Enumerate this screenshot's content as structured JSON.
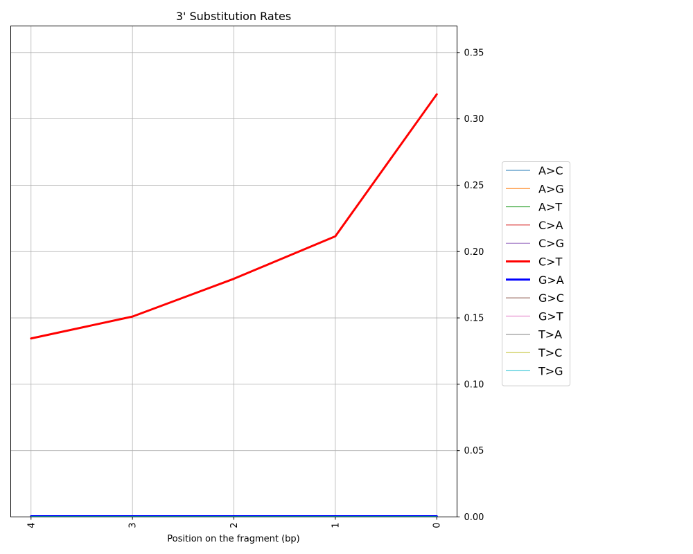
{
  "chart_data": {
    "type": "line",
    "title": "3' Substitution Rates",
    "xlabel": "Position on the fragment (bp)",
    "ylabel": "",
    "x": [
      4,
      3,
      2,
      1,
      0
    ],
    "x_tick_labels": [
      "4",
      "3",
      "2",
      "1",
      "0"
    ],
    "xlim": [
      4.2,
      -0.2
    ],
    "ylim": [
      0,
      0.37
    ],
    "y_ticks": [
      0,
      0.05,
      0.1,
      0.15,
      0.2,
      0.25,
      0.3,
      0.35
    ],
    "y_tick_labels": [
      "0.00",
      "0.05",
      "0.10",
      "0.15",
      "0.20",
      "0.25",
      "0.30",
      "0.35"
    ],
    "y_axis_side": "right",
    "grid": true,
    "legend_placement": "outside-right",
    "series": [
      {
        "name": "A>C",
        "color": "#1f77b4",
        "width": 1,
        "values": [
          0.0005,
          0.0005,
          0.0005,
          0.0005,
          0.0005
        ]
      },
      {
        "name": "A>G",
        "color": "#ff7f0e",
        "width": 1,
        "values": [
          0.0005,
          0.0005,
          0.0005,
          0.0005,
          0.0005
        ]
      },
      {
        "name": "A>T",
        "color": "#2ca02c",
        "width": 1,
        "values": [
          0.0005,
          0.0005,
          0.0005,
          0.0005,
          0.0005
        ]
      },
      {
        "name": "C>A",
        "color": "#d62728",
        "width": 1,
        "values": [
          0.0005,
          0.0005,
          0.0005,
          0.0005,
          0.0005
        ]
      },
      {
        "name": "C>G",
        "color": "#9467bd",
        "width": 1,
        "values": [
          0.0005,
          0.0005,
          0.0005,
          0.0005,
          0.0005
        ]
      },
      {
        "name": "C>T",
        "color": "#ff0000",
        "width": 3,
        "values": [
          0.1345,
          0.151,
          0.1795,
          0.2115,
          0.3185
        ]
      },
      {
        "name": "G>A",
        "color": "#0000ff",
        "width": 3,
        "values": [
          0.0005,
          0.0005,
          0.0005,
          0.0005,
          0.0005
        ]
      },
      {
        "name": "G>C",
        "color": "#8c564b",
        "width": 1,
        "values": [
          0.0005,
          0.0005,
          0.0005,
          0.0005,
          0.0005
        ]
      },
      {
        "name": "G>T",
        "color": "#e377c2",
        "width": 1,
        "values": [
          0.0005,
          0.0005,
          0.0005,
          0.0005,
          0.0005
        ]
      },
      {
        "name": "T>A",
        "color": "#7f7f7f",
        "width": 1,
        "values": [
          0.0005,
          0.0005,
          0.0005,
          0.0005,
          0.0005
        ]
      },
      {
        "name": "T>C",
        "color": "#bcbd22",
        "width": 1,
        "values": [
          0.0005,
          0.0005,
          0.0005,
          0.0005,
          0.0005
        ]
      },
      {
        "name": "T>G",
        "color": "#17becf",
        "width": 1,
        "values": [
          0.0005,
          0.0005,
          0.0005,
          0.0005,
          0.0005
        ]
      }
    ]
  }
}
